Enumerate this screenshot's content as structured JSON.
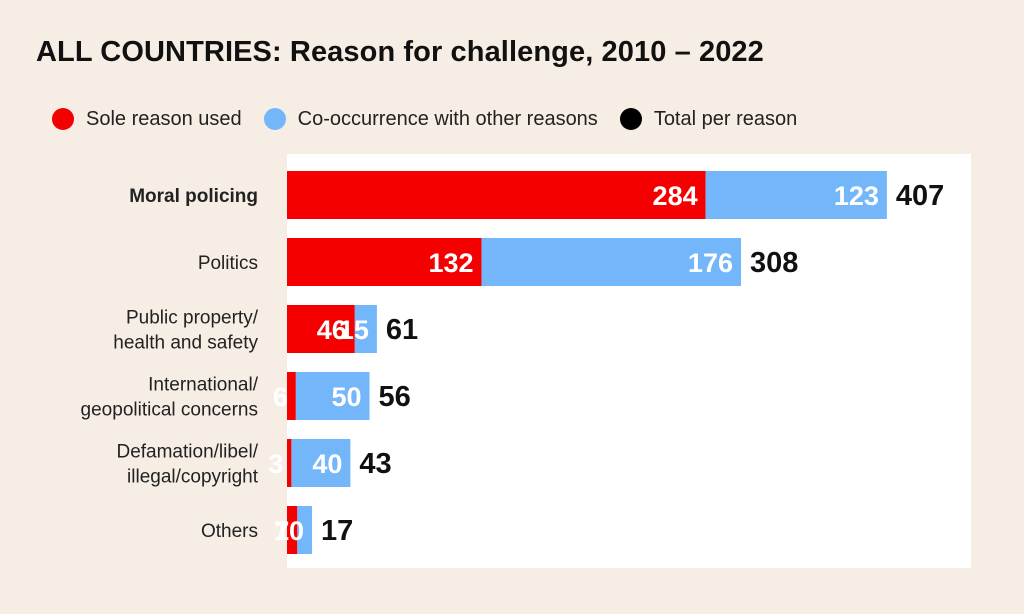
{
  "title": "ALL COUNTRIES: Reason for challenge, 2010 – 2022",
  "legend": [
    {
      "label": "Sole reason used",
      "color": "#f40000"
    },
    {
      "label": "Co-occurrence with other reasons",
      "color": "#74b6fa"
    },
    {
      "label": "Total per reason",
      "color": "#000000"
    }
  ],
  "chart_data": {
    "type": "bar",
    "orientation": "horizontal",
    "stacked": true,
    "categories": [
      [
        "Moral policing"
      ],
      [
        "Politics"
      ],
      [
        "Public property/",
        "health and safety"
      ],
      [
        "International/",
        "geopolitical concerns"
      ],
      [
        "Defamation/libel/",
        "illegal/copyright"
      ],
      [
        "Others"
      ]
    ],
    "highlighted_category": "Moral policing",
    "series": [
      {
        "name": "Sole reason used",
        "color": "#f40000",
        "values": [
          284,
          132,
          46,
          6,
          3,
          7
        ]
      },
      {
        "name": "Co-occurrence with other reasons",
        "color": "#74b6fa",
        "values": [
          123,
          176,
          15,
          50,
          40,
          10
        ]
      }
    ],
    "totals": {
      "name": "Total per reason",
      "values": [
        407,
        308,
        61,
        56,
        43,
        17
      ]
    },
    "xlim": [
      0,
      450
    ],
    "grid": false,
    "legend_position": "top"
  }
}
